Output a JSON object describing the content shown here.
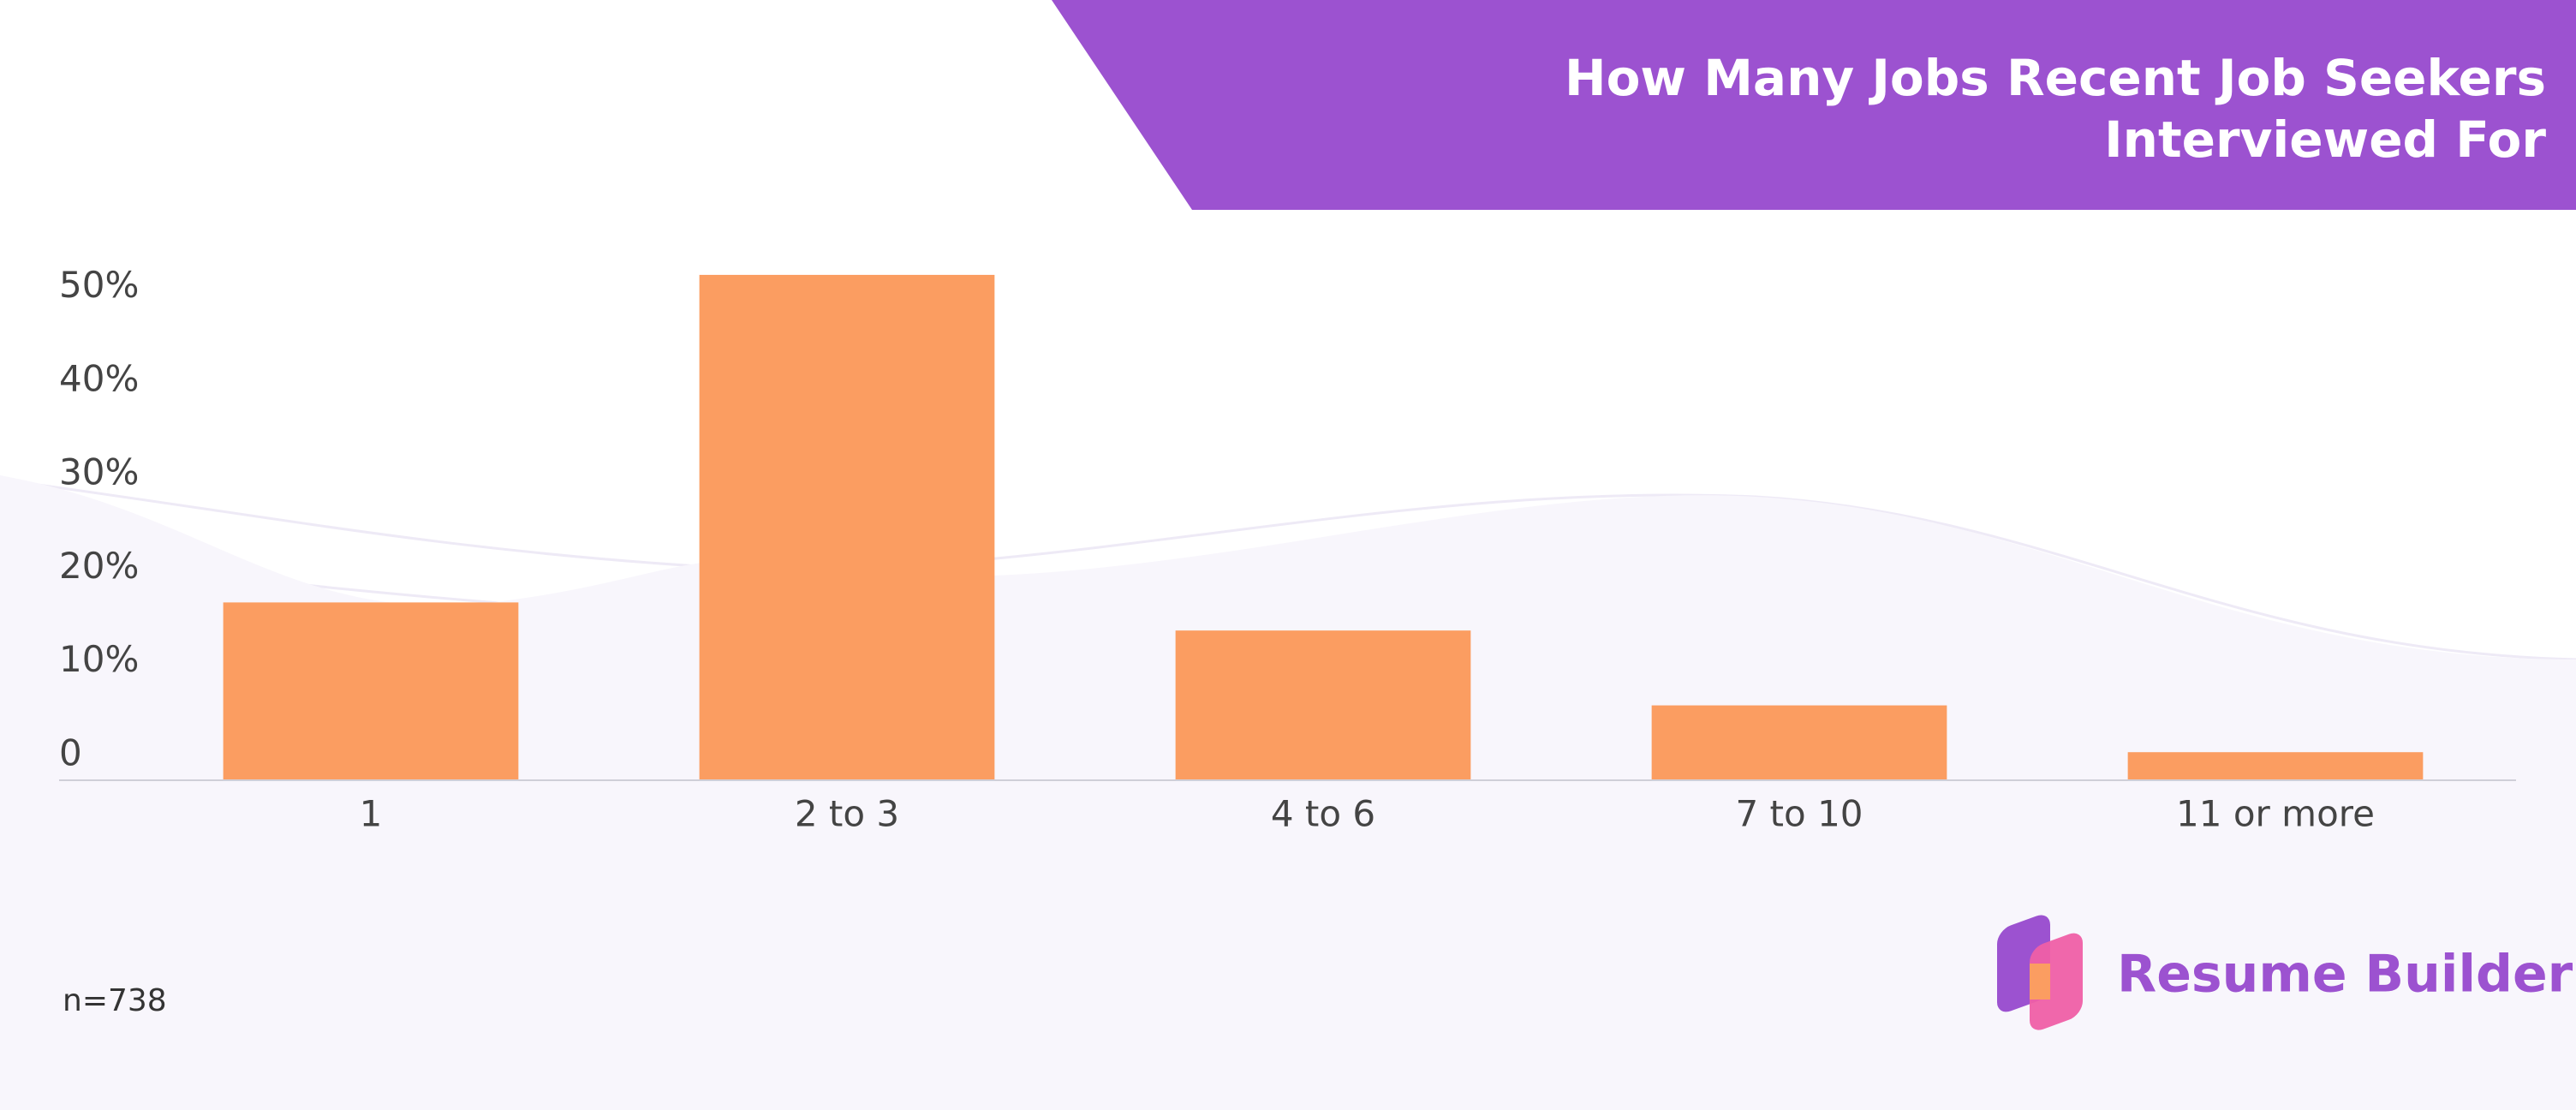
{
  "chart_data": {
    "type": "bar",
    "title": "How Many Jobs Recent Job Seekers Interviewed For",
    "categories": [
      "1",
      "2 to 3",
      "4 to 6",
      "7 to 10",
      "11 or more"
    ],
    "values": [
      19,
      54,
      16,
      8,
      3
    ],
    "color": "#fb9d61",
    "ylim": [
      0,
      55
    ],
    "yticks": [
      0,
      {
        "value": 10,
        "label": "10%"
      },
      {
        "value": 20,
        "label": "20%"
      },
      {
        "value": 30,
        "label": "30%"
      },
      {
        "value": 40,
        "label": "40%"
      },
      {
        "value": 50,
        "label": "50%"
      }
    ],
    "grid": false,
    "note": "n=738",
    "brand": "Resume Builder"
  }
}
